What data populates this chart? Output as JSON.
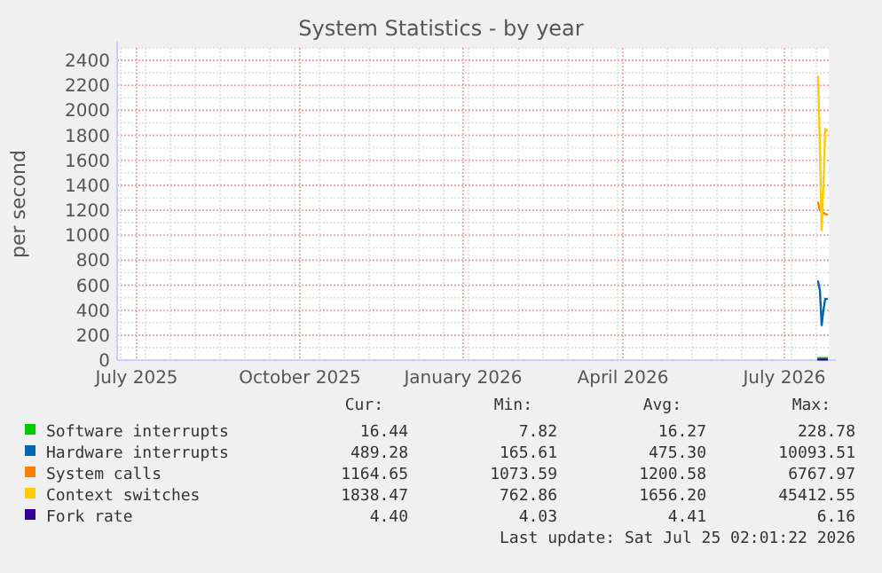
{
  "chart_data": {
    "type": "line",
    "title": "System Statistics - by year",
    "ylabel": "per second",
    "xlim": [
      "2025-06-20",
      "2026-07-26"
    ],
    "xticks": [
      {
        "value": "2025-07-01",
        "label": "July 2025"
      },
      {
        "value": "2025-10-01",
        "label": "October 2025"
      },
      {
        "value": "2026-01-01",
        "label": "January 2026"
      },
      {
        "value": "2026-04-01",
        "label": "April 2026"
      },
      {
        "value": "2026-07-01",
        "label": "July 2026"
      }
    ],
    "ylim": [
      0,
      2500
    ],
    "yticks": [
      0,
      200,
      400,
      600,
      800,
      1000,
      1200,
      1400,
      1600,
      1800,
      2000,
      2200,
      2400
    ],
    "grid": true,
    "legend": "bottom",
    "x": [
      "2026-07-20",
      "2026-07-21",
      "2026-07-22",
      "2026-07-23",
      "2026-07-24",
      "2026-07-25"
    ],
    "series": [
      {
        "name": "Software interrupts",
        "color": "#00cc00",
        "values": [
          16,
          16,
          17,
          16,
          16,
          16
        ]
      },
      {
        "name": "Hardware interrupts",
        "color": "#0066b3",
        "values": [
          630,
          560,
          280,
          400,
          490,
          489
        ]
      },
      {
        "name": "System calls",
        "color": "#ff8000",
        "values": [
          1260,
          1200,
          1190,
          1180,
          1170,
          1165
        ]
      },
      {
        "name": "Context switches",
        "color": "#ffcc00",
        "values": [
          2270,
          1700,
          1040,
          1400,
          1850,
          1838
        ]
      },
      {
        "name": "Fork rate",
        "color": "#330099",
        "values": [
          4.4,
          4.4,
          4.4,
          4.4,
          4.4,
          4.4
        ]
      }
    ],
    "annotations": [
      "Cur:",
      "Min:",
      "Avg:",
      "Max:",
      "16.44",
      "7.82",
      "16.27",
      "228.78",
      "489.28",
      "165.61",
      "475.30",
      "10093.51",
      "1164.65",
      "1073.59",
      "1200.58",
      "6767.97",
      "1838.47",
      "762.86",
      "1656.20",
      "45412.55",
      "4.40",
      "4.03",
      "4.41",
      "6.16",
      "Last update: Sat Jul 25 02:01:22 2026"
    ]
  }
}
